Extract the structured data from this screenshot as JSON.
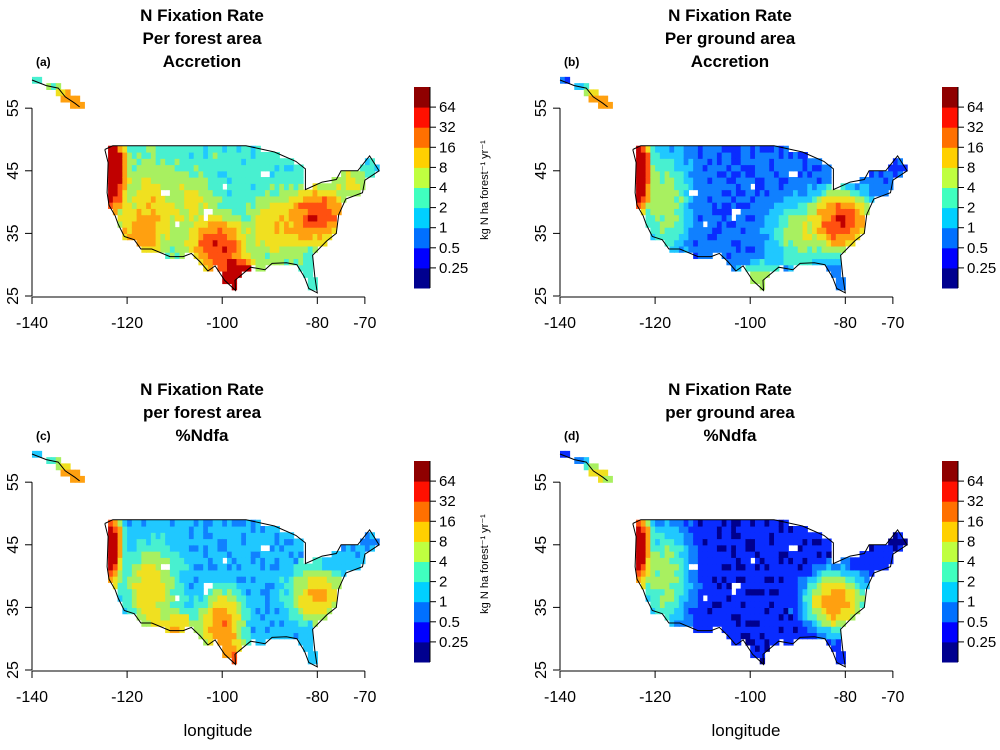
{
  "figure": {
    "xlabel": "longitude",
    "lon_ticks": [
      "-140",
      "-120",
      "-100",
      "-80",
      "-70"
    ],
    "lat_ticks": [
      "55",
      "45",
      "35",
      "25"
    ],
    "colorbar_ticks": [
      "64",
      "32",
      "16",
      "8",
      "4",
      "2",
      "1",
      "0.5",
      "0.25"
    ],
    "colorbar_colors": [
      "#00008f",
      "#0000ff",
      "#0070ff",
      "#00d0ff",
      "#40ffbf",
      "#bfff40",
      "#ffd000",
      "#ff7000",
      "#ff1000",
      "#8f0000"
    ]
  },
  "panels": [
    {
      "tag": "(a)",
      "title": [
        "N Fixation Rate",
        "Per forest area",
        "Accretion"
      ],
      "unit": "kg N ha forest⁻¹ yr⁻¹",
      "show_unit": true,
      "show_xlabel": false,
      "palette": [
        "#00008f",
        "#0a2cff",
        "#1080ff",
        "#20c8ff",
        "#48f0d0",
        "#a8f060",
        "#f0e020",
        "#ffa010",
        "#ff5010",
        "#c00000"
      ],
      "base": 2,
      "hotspots": [
        {
          "lon": -123.5,
          "lat": 45,
          "rx": 2,
          "ry": 4,
          "w": 7
        },
        {
          "lon": -97,
          "lat": 28,
          "rx": 2.5,
          "ry": 2,
          "w": 7
        },
        {
          "lon": -101,
          "lat": 33,
          "rx": 4,
          "ry": 3,
          "w": 5
        },
        {
          "lon": -80,
          "lat": 38,
          "rx": 4,
          "ry": 3,
          "w": 5
        },
        {
          "lon": -115,
          "lat": 38,
          "rx": 4,
          "ry": 6,
          "w": 3
        },
        {
          "lon": -118,
          "lat": 35,
          "rx": 4,
          "ry": 3,
          "w": 3
        },
        {
          "lon": -88,
          "lat": 36,
          "rx": 5,
          "ry": 4,
          "w": 3
        },
        {
          "lon": -106,
          "lat": 40,
          "rx": 4,
          "ry": 4,
          "w": 2
        },
        {
          "lon": -73,
          "lat": 43,
          "rx": 3,
          "ry": 3,
          "w": 2
        },
        {
          "lon": -132,
          "lat": 56,
          "rx": 3,
          "ry": 2,
          "w": 4
        }
      ]
    },
    {
      "tag": "(b)",
      "title": [
        "N Fixation Rate",
        "Per ground area",
        "Accretion"
      ],
      "unit": "",
      "show_unit": false,
      "show_xlabel": false,
      "palette": [
        "#00008f",
        "#0a2cff",
        "#1080ff",
        "#20c8ff",
        "#48f0d0",
        "#a8f060",
        "#f0e020",
        "#ffa010",
        "#ff5010",
        "#c00000"
      ],
      "base": 0.5,
      "hotspots": [
        {
          "lon": -123.5,
          "lat": 45,
          "rx": 1.5,
          "ry": 4,
          "w": 7
        },
        {
          "lon": -81,
          "lat": 37,
          "rx": 4,
          "ry": 3,
          "w": 5
        },
        {
          "lon": -118,
          "lat": 40,
          "rx": 4,
          "ry": 6,
          "w": 2
        },
        {
          "lon": -89,
          "lat": 35,
          "rx": 5,
          "ry": 4,
          "w": 2
        },
        {
          "lon": -98,
          "lat": 28,
          "rx": 3,
          "ry": 2,
          "w": 2
        },
        {
          "lon": -132,
          "lat": 56,
          "rx": 3,
          "ry": 2,
          "w": 4
        }
      ]
    },
    {
      "tag": "(c)",
      "title": [
        "N Fixation Rate",
        "per forest area",
        "%Ndfa"
      ],
      "unit": "kg N ha forest⁻¹ yr⁻¹",
      "show_unit": true,
      "show_xlabel": true,
      "palette": [
        "#00008f",
        "#0a2cff",
        "#1080ff",
        "#20c8ff",
        "#48f0d0",
        "#a8f060",
        "#f0e020",
        "#ffa010",
        "#ff5010",
        "#c00000"
      ],
      "base": 1,
      "hotspots": [
        {
          "lon": -123.5,
          "lat": 45,
          "rx": 1.5,
          "ry": 4,
          "w": 6
        },
        {
          "lon": -100,
          "lat": 32,
          "rx": 3,
          "ry": 4,
          "w": 4
        },
        {
          "lon": -80,
          "lat": 37,
          "rx": 4,
          "ry": 3,
          "w": 3.5
        },
        {
          "lon": -115,
          "lat": 38,
          "rx": 4,
          "ry": 5,
          "w": 3
        },
        {
          "lon": -110,
          "lat": 32,
          "rx": 4,
          "ry": 2,
          "w": 3
        },
        {
          "lon": -98,
          "lat": 27,
          "rx": 2,
          "ry": 2,
          "w": 4
        },
        {
          "lon": -132,
          "lat": 56,
          "rx": 3,
          "ry": 2,
          "w": 4
        }
      ]
    },
    {
      "tag": "(d)",
      "title": [
        "N Fixation Rate",
        "per ground area",
        "%Ndfa"
      ],
      "unit": "",
      "show_unit": false,
      "show_xlabel": true,
      "palette": [
        "#00008f",
        "#0a2cff",
        "#1080ff",
        "#20c8ff",
        "#48f0d0",
        "#a8f060",
        "#f0e020",
        "#ffa010",
        "#ff5010",
        "#c00000"
      ],
      "base": 0.3,
      "hotspots": [
        {
          "lon": -123.5,
          "lat": 45,
          "rx": 1.5,
          "ry": 4,
          "w": 6
        },
        {
          "lon": -82,
          "lat": 36,
          "rx": 4,
          "ry": 3,
          "w": 4
        },
        {
          "lon": -118,
          "lat": 40,
          "rx": 4,
          "ry": 6,
          "w": 2
        },
        {
          "lon": -132,
          "lat": 56,
          "rx": 3,
          "ry": 2,
          "w": 3
        }
      ]
    }
  ]
}
